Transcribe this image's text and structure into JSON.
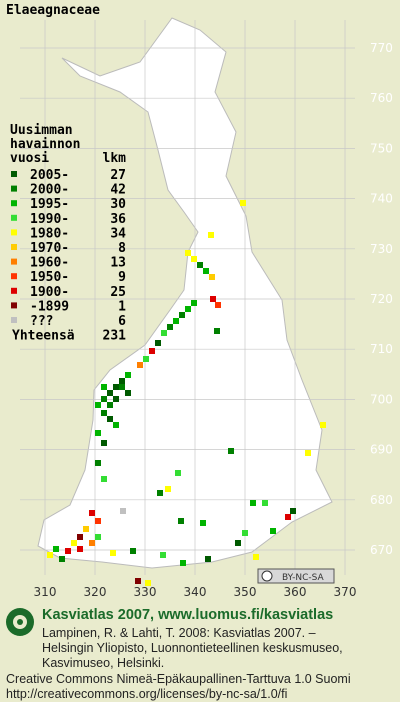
{
  "title": "Elaeagnaceae",
  "legend": {
    "heading": [
      "Uusimman",
      "havainnon",
      "vuosi"
    ],
    "count_heading": "lkm",
    "rows": [
      {
        "label": "2005-",
        "count": 27,
        "color": "#005a00"
      },
      {
        "label": "2000-",
        "count": 42,
        "color": "#008000"
      },
      {
        "label": "1995-",
        "count": 30,
        "color": "#00b400"
      },
      {
        "label": "1990-",
        "count": 36,
        "color": "#33dd33"
      },
      {
        "label": "1980-",
        "count": 34,
        "color": "#ffff00"
      },
      {
        "label": "1970-",
        "count": 8,
        "color": "#ffcc00"
      },
      {
        "label": "1960-",
        "count": 13,
        "color": "#ff7f00"
      },
      {
        "label": "1950-",
        "count": 9,
        "color": "#ff3300"
      },
      {
        "label": "1900-",
        "count": 25,
        "color": "#dd0000"
      },
      {
        "label": "-1899",
        "count": 1,
        "color": "#800000"
      },
      {
        "label": "???",
        "count": 6,
        "color": "#c0c0c0"
      }
    ],
    "total_label": "Yhteensä",
    "total": 231
  },
  "y_labels": [
    "770",
    "760",
    "750",
    "740",
    "730",
    "720",
    "710",
    "700",
    "690",
    "680",
    "670"
  ],
  "x_labels": [
    "310",
    "320",
    "330",
    "340",
    "350",
    "360",
    "370"
  ],
  "license_badge": "BY-NC-SA",
  "footer": {
    "brand": "Kasviatlas 2007, www.luomus.fi/kasviatlas",
    "citation": [
      "Lampinen, R. & Lahti, T. 2008: Kasviatlas 2007. –",
      "Helsingin Yliopisto, Luonnontieteellinen keskusmuseo,",
      "Kasvimuseo, Helsinki."
    ],
    "license": [
      "Creative Commons Nimeä-Epäkaupallinen-Tarttuva 1.0 Suomi",
      "http://creativecommons.org/licenses/by-nc-sa/1.0/fi"
    ]
  }
}
